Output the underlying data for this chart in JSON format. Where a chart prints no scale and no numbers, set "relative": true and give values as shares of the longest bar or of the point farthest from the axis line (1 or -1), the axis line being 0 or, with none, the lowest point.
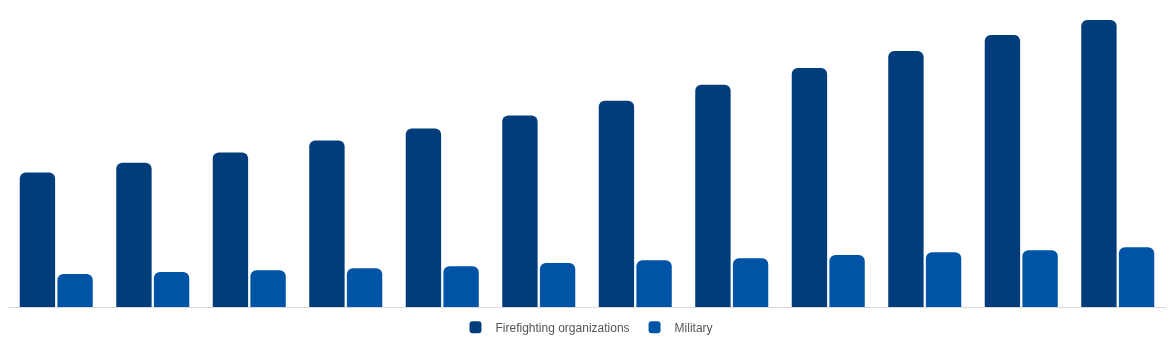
{
  "chart_data": {
    "type": "bar",
    "relative": true,
    "categories": [
      null,
      null,
      null,
      null,
      null,
      null,
      null,
      null,
      null,
      null,
      null,
      null
    ],
    "series": [
      {
        "name": "Firefighting organizations",
        "color": "#023d7b",
        "values": [
          0.469,
          0.503,
          0.538,
          0.58,
          0.622,
          0.667,
          0.719,
          0.774,
          0.833,
          0.892,
          0.948,
          1
        ]
      },
      {
        "name": "Military",
        "color": "#0054a6",
        "values": [
          0.115,
          0.122,
          0.128,
          0.135,
          0.142,
          0.153,
          0.163,
          0.17,
          0.181,
          0.191,
          0.198,
          0.208
        ]
      }
    ],
    "legend": "bottom"
  }
}
